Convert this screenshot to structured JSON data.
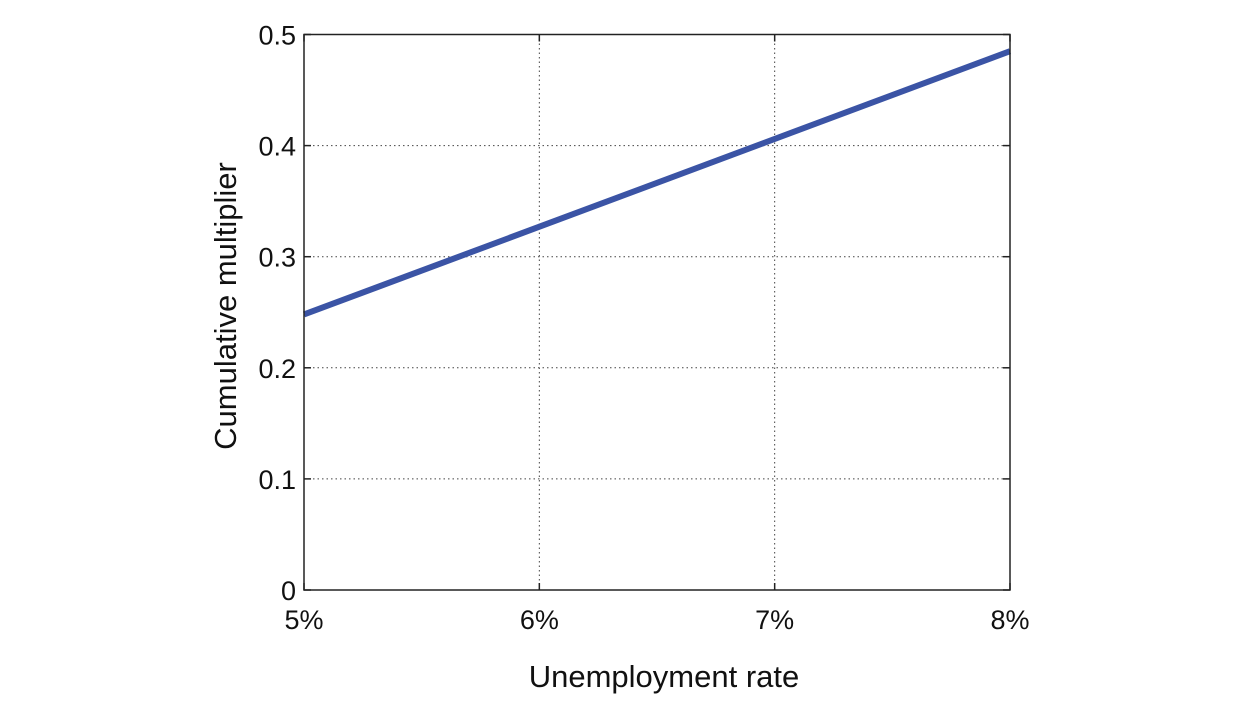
{
  "chart_data": {
    "type": "line",
    "title": "",
    "xlabel": "Unemployment rate",
    "ylabel": "Cumulative multiplier",
    "xlim": [
      5,
      8
    ],
    "ylim": [
      0,
      0.5
    ],
    "x_ticks": [
      5,
      6,
      7,
      8
    ],
    "x_tick_labels": [
      "5%",
      "6%",
      "7%",
      "8%"
    ],
    "y_ticks": [
      0,
      0.1,
      0.2,
      0.3,
      0.4,
      0.5
    ],
    "y_tick_labels": [
      "0",
      "0.1",
      "0.2",
      "0.3",
      "0.4",
      "0.5"
    ],
    "grid": true,
    "grid_style": "dotted",
    "series": [
      {
        "x": [
          5,
          8
        ],
        "y": [
          0.248,
          0.485
        ],
        "color": "#3b54a5"
      }
    ]
  }
}
